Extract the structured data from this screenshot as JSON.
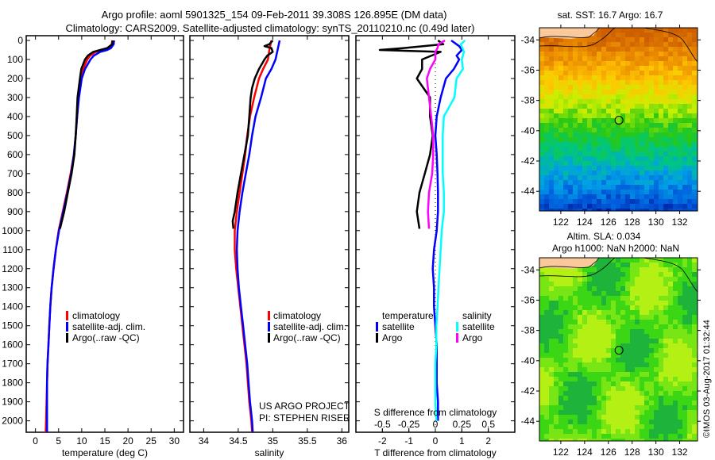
{
  "title": {
    "line1": "Argo profile: aoml 5901325_154 09-Feb-2011 39.308S 126.895E (DM data)",
    "line2": "Climatology: CARS2009. Satellite-adjusted climatology: synTS_20110210.nc (0.49d later)"
  },
  "colors": {
    "climatology": "#ff0000",
    "satellite": "#0000ff",
    "argo": "#000000",
    "sal_satellite": "#00ffff",
    "sal_argo": "#ff00ff",
    "land": "#f9c89b"
  },
  "credit": {
    "line1": "US ARGO PROJECT",
    "line2": "PI: STEPHEN RISER"
  },
  "watermark": "©IMOS 03-Aug-2017 01:32:44",
  "chart_data": [
    {
      "type": "line",
      "name": "temperature-profile",
      "xlabel": "temperature (deg C)",
      "ylabel": "",
      "xlim": [
        -2,
        32
      ],
      "ylim": [
        2060,
        0
      ],
      "xticks": [
        0,
        5,
        10,
        15,
        20,
        25,
        30
      ],
      "yticks": [
        0,
        100,
        200,
        300,
        400,
        500,
        600,
        700,
        800,
        900,
        1000,
        1100,
        1200,
        1300,
        1400,
        1500,
        1600,
        1700,
        1800,
        1900,
        2000
      ],
      "legend": {
        "position": "center-left",
        "entries": [
          "climatology",
          "satellite-adj. clim.",
          "Argo(..raw -QC)"
        ]
      },
      "series": [
        {
          "name": "climatology",
          "color_key": "climatology",
          "depth": [
            0,
            20,
            40,
            50,
            60,
            80,
            100,
            150,
            200,
            300,
            400,
            500,
            600,
            700,
            800,
            900,
            1000,
            1100,
            1200,
            1300,
            1400,
            1500,
            1600,
            1700,
            1800,
            1900,
            2000,
            2060
          ],
          "values": [
            16.6,
            16.5,
            15.8,
            14.5,
            13.0,
            11.8,
            11.2,
            10.3,
            9.8,
            9.3,
            9.0,
            8.7,
            8.3,
            7.6,
            6.8,
            5.9,
            5.0,
            4.4,
            3.9,
            3.5,
            3.2,
            3.0,
            2.8,
            2.6,
            2.5,
            2.4,
            2.3,
            2.2
          ]
        },
        {
          "name": "satellite-adj. clim.",
          "color_key": "satellite",
          "depth": [
            0,
            20,
            40,
            50,
            60,
            80,
            100,
            150,
            200,
            300,
            400,
            500,
            600,
            700,
            800,
            900,
            1000,
            1100,
            1200,
            1300,
            1400,
            1500,
            1600,
            1700,
            1800,
            1900,
            2000,
            2060
          ],
          "values": [
            17.0,
            16.9,
            16.3,
            15.5,
            14.0,
            12.6,
            11.9,
            10.7,
            10.0,
            9.4,
            9.0,
            8.7,
            8.3,
            7.7,
            6.9,
            6.0,
            5.1,
            4.4,
            3.9,
            3.5,
            3.2,
            3.0,
            2.8,
            2.6,
            2.5,
            2.5,
            2.5,
            2.5
          ]
        },
        {
          "name": "Argo(..raw -QC)",
          "color_key": "argo",
          "depth": [
            0,
            20,
            40,
            50,
            60,
            80,
            100,
            150,
            200,
            300,
            400,
            500,
            600,
            700,
            800,
            900,
            990
          ],
          "values": [
            16.7,
            16.6,
            15.5,
            14.0,
            12.5,
            11.3,
            10.7,
            9.9,
            9.6,
            9.1,
            8.9,
            8.7,
            8.4,
            7.8,
            7.0,
            6.2,
            5.3
          ]
        }
      ]
    },
    {
      "type": "line",
      "name": "salinity-profile",
      "xlabel": "salinity",
      "xlim": [
        33.8,
        36.1
      ],
      "ylim": [
        2060,
        0
      ],
      "xticks": [
        34,
        34.5,
        35,
        35.5,
        36
      ],
      "legend": {
        "position": "center-right",
        "entries": [
          "climatology",
          "satellite-adj. clim.",
          "Argo(..raw -QC)"
        ]
      },
      "series": [
        {
          "name": "climatology",
          "color_key": "climatology",
          "depth": [
            0,
            50,
            100,
            150,
            200,
            300,
            400,
            500,
            600,
            700,
            800,
            900,
            1000,
            1100,
            1200,
            1300,
            1400,
            1500,
            1600,
            1700,
            1800,
            1900,
            2000,
            2060
          ],
          "values": [
            34.98,
            34.95,
            34.93,
            34.86,
            34.8,
            34.73,
            34.67,
            34.63,
            34.6,
            34.56,
            34.52,
            34.48,
            34.45,
            34.45,
            34.47,
            34.5,
            34.53,
            34.56,
            34.59,
            34.62,
            34.64,
            34.66,
            34.69,
            34.7
          ]
        },
        {
          "name": "satellite-adj. clim.",
          "color_key": "satellite",
          "depth": [
            0,
            50,
            100,
            150,
            200,
            300,
            400,
            500,
            600,
            700,
            800,
            900,
            1000,
            1100,
            1200,
            1300,
            1400,
            1500,
            1600,
            1700,
            1800,
            1900,
            2000,
            2060
          ],
          "values": [
            35.1,
            35.07,
            35.04,
            34.98,
            34.9,
            34.83,
            34.75,
            34.7,
            34.66,
            34.61,
            34.56,
            34.52,
            34.49,
            34.48,
            34.49,
            34.51,
            34.54,
            34.57,
            34.6,
            34.63,
            34.65,
            34.67,
            34.7,
            34.71
          ]
        },
        {
          "name": "Argo(..raw -QC)",
          "color_key": "argo",
          "depth": [
            0,
            20,
            30,
            40,
            60,
            80,
            100,
            150,
            200,
            250,
            300,
            400,
            500,
            600,
            700,
            800,
            900,
            950,
            990
          ],
          "values": [
            35.0,
            34.95,
            34.88,
            34.98,
            35.0,
            34.92,
            34.88,
            34.8,
            34.74,
            34.7,
            34.68,
            34.66,
            34.64,
            34.59,
            34.54,
            34.49,
            34.45,
            34.42,
            34.43
          ]
        }
      ]
    },
    {
      "type": "line",
      "name": "difference-profile",
      "xlabel": "T difference from climatology",
      "x2label": "S difference from climatology",
      "xlim": [
        -3,
        3
      ],
      "x2lim": [
        -0.75,
        0.75
      ],
      "ylim": [
        2060,
        0
      ],
      "xticks": [
        -2,
        -1,
        0,
        1,
        2
      ],
      "x2ticks": [
        -0.5,
        -0.25,
        0,
        0.25,
        0.5
      ],
      "x2ticklabels": [
        "-0.5",
        "-0.25",
        "0",
        "0.25",
        "0.5"
      ],
      "legend": {
        "position": "lower-center",
        "temperature_heading": "temperature",
        "salinity_heading": "salinity",
        "entries": [
          "satellite",
          "Argo",
          "satellite",
          "Argo"
        ]
      },
      "series": [
        {
          "name": "temperature satellite",
          "axis": "T",
          "color_key": "satellite",
          "depth": [
            0,
            30,
            50,
            80,
            100,
            150,
            200,
            300,
            400,
            500,
            600,
            700,
            800,
            900,
            1000,
            1100,
            1200,
            1300,
            1400,
            1500,
            1600,
            1700,
            1800,
            1900,
            2000
          ],
          "values": [
            0.6,
            0.9,
            1.0,
            0.8,
            0.9,
            0.7,
            0.4,
            0.2,
            0.05,
            0.0,
            0.05,
            0.08,
            0.1,
            0.1,
            0.05,
            -0.05,
            -0.1,
            -0.05,
            -0.05,
            0.0,
            0.05,
            0.05,
            0.05,
            0.1,
            0.1
          ]
        },
        {
          "name": "temperature Argo",
          "axis": "T",
          "color_key": "argo",
          "depth": [
            0,
            20,
            40,
            50,
            60,
            100,
            150,
            200,
            300,
            400,
            500,
            600,
            700,
            800,
            900,
            990
          ],
          "values": [
            0.1,
            0.3,
            -1.2,
            -2.1,
            0.2,
            -0.5,
            -0.5,
            -0.7,
            -0.2,
            -0.2,
            -0.1,
            -0.2,
            -0.4,
            -0.6,
            -0.7,
            -0.6
          ]
        },
        {
          "name": "salinity satellite",
          "axis": "S",
          "color_key": "sal_satellite",
          "depth": [
            0,
            20,
            60,
            100,
            150,
            200,
            300,
            400,
            500,
            600,
            700,
            800,
            900,
            1000,
            1100,
            1200,
            1300,
            1400,
            1500,
            1600,
            1700,
            1800,
            1900,
            2000
          ],
          "values": [
            0.28,
            0.24,
            0.27,
            0.25,
            0.26,
            0.2,
            0.18,
            0.08,
            0.07,
            0.07,
            0.07,
            0.08,
            0.08,
            0.06,
            0.05,
            0.04,
            0.03,
            0.02,
            0.01,
            0.01,
            0.0,
            0.0,
            0.0,
            0.01
          ]
        },
        {
          "name": "salinity Argo",
          "axis": "S",
          "color_key": "sal_argo",
          "depth": [
            0,
            20,
            40,
            60,
            100,
            150,
            200,
            300,
            400,
            500,
            600,
            700,
            800,
            900,
            990
          ],
          "values": [
            0.09,
            0.03,
            0.02,
            0.0,
            0.0,
            -0.05,
            -0.08,
            -0.06,
            -0.04,
            -0.02,
            -0.02,
            -0.03,
            -0.06,
            -0.07,
            -0.06
          ]
        }
      ]
    },
    {
      "type": "heatmap",
      "name": "sst-map",
      "title": "sat. SST: 16.7 Argo: 16.7",
      "xticks": [
        122,
        124,
        126,
        128,
        130,
        132
      ],
      "yticks": [
        -34,
        -36,
        -38,
        -40,
        -42,
        -44
      ],
      "xlim": [
        120.2,
        133.5
      ],
      "ylim": [
        -45.3,
        -33.2
      ],
      "marker": {
        "lon": 126.895,
        "lat": -39.308
      },
      "colormap": "jet-like: orange (warm, north) to dark blue (cold, south)"
    },
    {
      "type": "heatmap",
      "name": "sla-map",
      "title_line1": "Altim. SLA: 0.034",
      "title_line2": "Argo h1000: NaN h2000: NaN",
      "xticks": [
        122,
        124,
        126,
        128,
        130,
        132
      ],
      "yticks": [
        -34,
        -36,
        -38,
        -40,
        -42,
        -44
      ],
      "xlim": [
        120.2,
        133.5
      ],
      "ylim": [
        -45.3,
        -33.2
      ],
      "marker": {
        "lon": 126.895,
        "lat": -39.308
      },
      "colormap": "green/yellow-green near-zero anomaly"
    }
  ]
}
